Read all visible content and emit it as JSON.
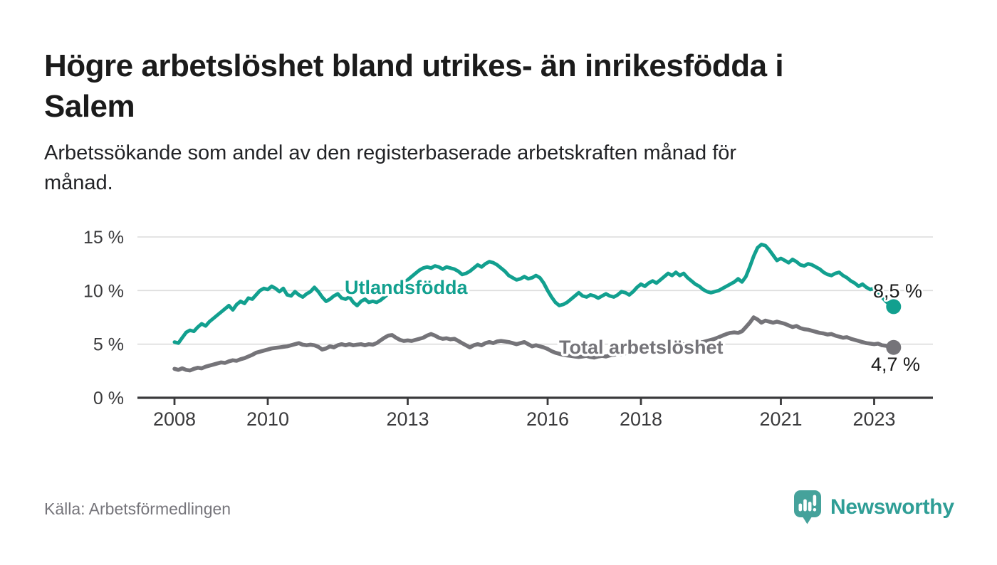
{
  "header": {
    "title_lines": [
      "Högre arbetslöshet bland utrikes- än inrikesfödda i",
      "Salem"
    ],
    "subtitle_lines": [
      "Arbetssökande som andel av den registerbaserade arbetskraften månad för",
      "månad."
    ]
  },
  "footer": {
    "source": "Källa: Arbetsförmedlingen",
    "brand": {
      "name": "Newsworthy",
      "icon": "newsworthy-speech-bubble-bars-icon",
      "icon_color": "#45a29b",
      "text_color": "#2f9e96"
    }
  },
  "chart_data": {
    "type": "line",
    "title": "Högre arbetslöshet bland utrikes- än inrikesfödda i Salem",
    "subtitle": "Arbetssökande som andel av den registerbaserade arbetskraften månad för månad.",
    "source": "Källa: Arbetsförmedlingen",
    "x_unit": "month",
    "x_start": "2008-01",
    "x_end": "2023-06",
    "x_tick_years": [
      2008,
      2010,
      2013,
      2016,
      2018,
      2021,
      2023
    ],
    "y_ticks": [
      {
        "value": 0,
        "label": "0 %"
      },
      {
        "value": 5,
        "label": "5 %"
      },
      {
        "value": 10,
        "label": "10 %"
      },
      {
        "value": 15,
        "label": "15 %"
      }
    ],
    "ylim": [
      0,
      15.7
    ],
    "grid": "horizontal",
    "legend_position": "inline-labels",
    "axis_color": "#3a3a3c",
    "grid_color": "#dcdcdc",
    "series": [
      {
        "name": "Utlandsfödda",
        "color": "#12a08f",
        "line_width": 5,
        "end_value": 8.5,
        "end_label": {
          "text": "8,5 %",
          "x": 1226,
          "y": 418
        },
        "label_annotation": {
          "text": "Utlandsfödda",
          "x": 484,
          "y": 413
        },
        "values": [
          5.2,
          5.1,
          5.6,
          6.1,
          6.3,
          6.2,
          6.6,
          6.9,
          6.7,
          7.1,
          7.4,
          7.7,
          8.0,
          8.3,
          8.6,
          8.2,
          8.7,
          9.0,
          8.8,
          9.3,
          9.2,
          9.6,
          10.0,
          10.2,
          10.1,
          10.4,
          10.2,
          9.9,
          10.2,
          9.6,
          9.5,
          9.9,
          9.6,
          9.4,
          9.7,
          9.9,
          10.3,
          9.9,
          9.4,
          9.0,
          9.2,
          9.5,
          9.7,
          9.3,
          9.2,
          9.4,
          8.9,
          8.6,
          9.0,
          9.2,
          8.9,
          9.0,
          8.9,
          9.1,
          9.4,
          9.7,
          10.0,
          10.2,
          10.5,
          10.7,
          11.0,
          11.3,
          11.6,
          11.9,
          12.1,
          12.2,
          12.1,
          12.3,
          12.2,
          12.0,
          12.2,
          12.1,
          12.0,
          11.8,
          11.5,
          11.6,
          11.8,
          12.1,
          12.4,
          12.2,
          12.5,
          12.7,
          12.6,
          12.4,
          12.1,
          11.8,
          11.4,
          11.2,
          11.0,
          11.1,
          11.3,
          11.1,
          11.2,
          11.4,
          11.2,
          10.7,
          10.0,
          9.4,
          8.9,
          8.6,
          8.7,
          8.9,
          9.2,
          9.5,
          9.8,
          9.5,
          9.4,
          9.6,
          9.5,
          9.3,
          9.5,
          9.7,
          9.5,
          9.4,
          9.6,
          9.9,
          9.8,
          9.6,
          9.9,
          10.3,
          10.6,
          10.4,
          10.7,
          10.9,
          10.7,
          11.0,
          11.3,
          11.6,
          11.4,
          11.7,
          11.4,
          11.6,
          11.2,
          10.9,
          10.6,
          10.4,
          10.1,
          9.9,
          9.8,
          9.9,
          10.0,
          10.2,
          10.4,
          10.6,
          10.8,
          11.1,
          10.8,
          11.3,
          12.2,
          13.2,
          14.0,
          14.3,
          14.2,
          13.8,
          13.3,
          12.8,
          13.0,
          12.8,
          12.6,
          12.9,
          12.7,
          12.4,
          12.3,
          12.5,
          12.4,
          12.2,
          12.0,
          11.7,
          11.5,
          11.4,
          11.6,
          11.7,
          11.4,
          11.2,
          10.9,
          10.7,
          10.4,
          10.6,
          10.3,
          10.1,
          10.2,
          9.9,
          9.4,
          9.0,
          8.7,
          8.5
        ]
      },
      {
        "name": "Total arbetslöshet",
        "color": "#757479",
        "line_width": 5.5,
        "end_value": 4.7,
        "end_label": {
          "text": "4,7 %",
          "x": 1223,
          "y": 521
        },
        "label_annotation": {
          "text": "Total arbetslöshet",
          "x": 785,
          "y": 497
        },
        "values": [
          2.7,
          2.6,
          2.75,
          2.6,
          2.55,
          2.7,
          2.8,
          2.75,
          2.9,
          3.0,
          3.1,
          3.2,
          3.3,
          3.25,
          3.4,
          3.5,
          3.45,
          3.6,
          3.7,
          3.85,
          4.0,
          4.2,
          4.3,
          4.4,
          4.5,
          4.6,
          4.65,
          4.7,
          4.75,
          4.8,
          4.9,
          5.0,
          5.1,
          4.95,
          4.9,
          4.95,
          4.9,
          4.75,
          4.5,
          4.6,
          4.8,
          4.7,
          4.9,
          5.0,
          4.9,
          5.0,
          4.9,
          4.95,
          5.0,
          4.9,
          5.0,
          4.95,
          5.1,
          5.35,
          5.6,
          5.8,
          5.85,
          5.6,
          5.4,
          5.3,
          5.35,
          5.3,
          5.4,
          5.5,
          5.6,
          5.8,
          5.95,
          5.8,
          5.6,
          5.5,
          5.55,
          5.45,
          5.5,
          5.3,
          5.1,
          4.9,
          4.7,
          4.9,
          5.0,
          4.9,
          5.1,
          5.2,
          5.1,
          5.25,
          5.3,
          5.25,
          5.2,
          5.1,
          5.0,
          5.1,
          5.2,
          5.0,
          4.8,
          4.9,
          4.8,
          4.7,
          4.55,
          4.35,
          4.2,
          4.1,
          4.0,
          3.95,
          3.9,
          3.85,
          3.8,
          3.85,
          3.9,
          3.8,
          3.75,
          3.85,
          3.9,
          3.85,
          3.95,
          4.0,
          4.1,
          4.05,
          4.15,
          4.25,
          4.3,
          4.4,
          4.5,
          4.45,
          4.55,
          4.6,
          4.7,
          4.65,
          4.75,
          4.8,
          4.9,
          4.85,
          4.95,
          5.0,
          5.0,
          5.05,
          5.1,
          5.15,
          5.2,
          5.3,
          5.4,
          5.5,
          5.65,
          5.8,
          5.95,
          6.05,
          6.1,
          6.05,
          6.2,
          6.6,
          7.0,
          7.5,
          7.3,
          7.0,
          7.2,
          7.1,
          7.0,
          7.1,
          7.0,
          6.9,
          6.75,
          6.6,
          6.7,
          6.5,
          6.4,
          6.35,
          6.25,
          6.15,
          6.05,
          6.0,
          5.9,
          5.95,
          5.8,
          5.7,
          5.6,
          5.65,
          5.5,
          5.4,
          5.3,
          5.2,
          5.1,
          5.05,
          5.0,
          5.05,
          4.9,
          4.85,
          4.75,
          4.7
        ]
      }
    ]
  }
}
